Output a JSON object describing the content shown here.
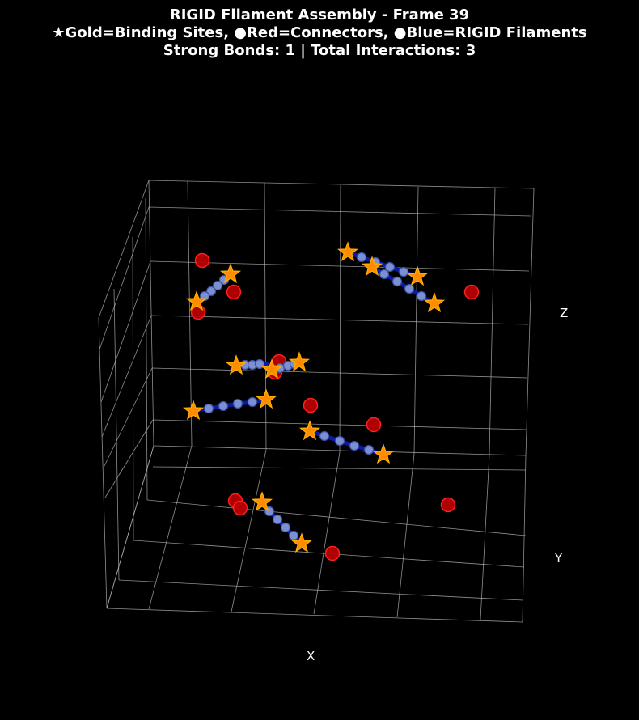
{
  "header": {
    "title_line1": "RIGID Filament Assembly - Frame 39",
    "title_line2": "★Gold=Binding Sites, ●Red=Connectors, ●Blue=RIGID Filaments",
    "title_line3": "Strong Bonds: 1 | Total Interactions: 3"
  },
  "chart_data": {
    "type": "scatter",
    "projection": "3d",
    "axes": {
      "x_label": "X",
      "y_label": "Y",
      "z_label": "Z",
      "grid": true,
      "background": "#000000",
      "grid_color": "#b3b3b3"
    },
    "colors": {
      "filament_fill": "#7b8fd4",
      "filament_edge": "#3a4fa0",
      "bond_line": "#0a1aa8",
      "binding_site": "#ff8c00",
      "binding_site_edge": "#ffb000",
      "connector": "#c00000",
      "connector_edge": "#ff2020"
    },
    "series": [
      {
        "name": "Binding Sites",
        "marker": "star",
        "points": [
          [
            285,
            339
          ],
          [
            243,
            373
          ],
          [
            430,
            312
          ],
          [
            460,
            330
          ],
          [
            516,
            342
          ],
          [
            537,
            375
          ],
          [
            292,
            452
          ],
          [
            336,
            457
          ],
          [
            370,
            448
          ],
          [
            239,
            508
          ],
          [
            329,
            494
          ],
          [
            383,
            533
          ],
          [
            474,
            562
          ],
          [
            324,
            621
          ],
          [
            373,
            672
          ]
        ]
      },
      {
        "name": "Connectors",
        "marker": "circle",
        "points": [
          [
            250,
            322
          ],
          [
            289,
            361
          ],
          [
            245,
            386
          ],
          [
            583,
            361
          ],
          [
            345,
            447
          ],
          [
            340,
            460
          ],
          [
            384,
            501
          ],
          [
            462,
            525
          ],
          [
            291,
            619
          ],
          [
            297,
            628
          ],
          [
            554,
            624
          ],
          [
            411,
            684
          ]
        ]
      },
      {
        "name": "RIGID Filaments",
        "marker": "circle",
        "filaments": [
          [
            [
              285,
              339
            ],
            [
              277,
              346
            ],
            [
              269,
              353
            ],
            [
              261,
              360
            ],
            [
              253,
              366
            ],
            [
              243,
              373
            ]
          ],
          [
            [
              430,
              312
            ],
            [
              447,
              318
            ],
            [
              464,
              324
            ],
            [
              482,
              330
            ],
            [
              499,
              336
            ],
            [
              516,
              342
            ]
          ],
          [
            [
              460,
              330
            ],
            [
              475,
              339
            ],
            [
              491,
              348
            ],
            [
              506,
              357
            ],
            [
              521,
              366
            ],
            [
              537,
              375
            ]
          ],
          [
            [
              292,
              452
            ],
            [
              303,
              451
            ],
            [
              312,
              451
            ],
            [
              321,
              450
            ],
            [
              330,
              450
            ]
          ],
          [
            [
              336,
              457
            ],
            [
              346,
              455
            ],
            [
              356,
              452
            ],
            [
              364,
              450
            ],
            [
              370,
              448
            ]
          ],
          [
            [
              239,
              508
            ],
            [
              258,
              505
            ],
            [
              276,
              502
            ],
            [
              294,
              499
            ],
            [
              312,
              497
            ],
            [
              329,
              494
            ]
          ],
          [
            [
              383,
              533
            ],
            [
              401,
              539
            ],
            [
              420,
              545
            ],
            [
              438,
              551
            ],
            [
              456,
              556
            ],
            [
              474,
              562
            ]
          ],
          [
            [
              324,
              621
            ],
            [
              333,
              632
            ],
            [
              343,
              642
            ],
            [
              353,
              652
            ],
            [
              363,
              662
            ],
            [
              373,
              672
            ]
          ]
        ]
      }
    ]
  }
}
